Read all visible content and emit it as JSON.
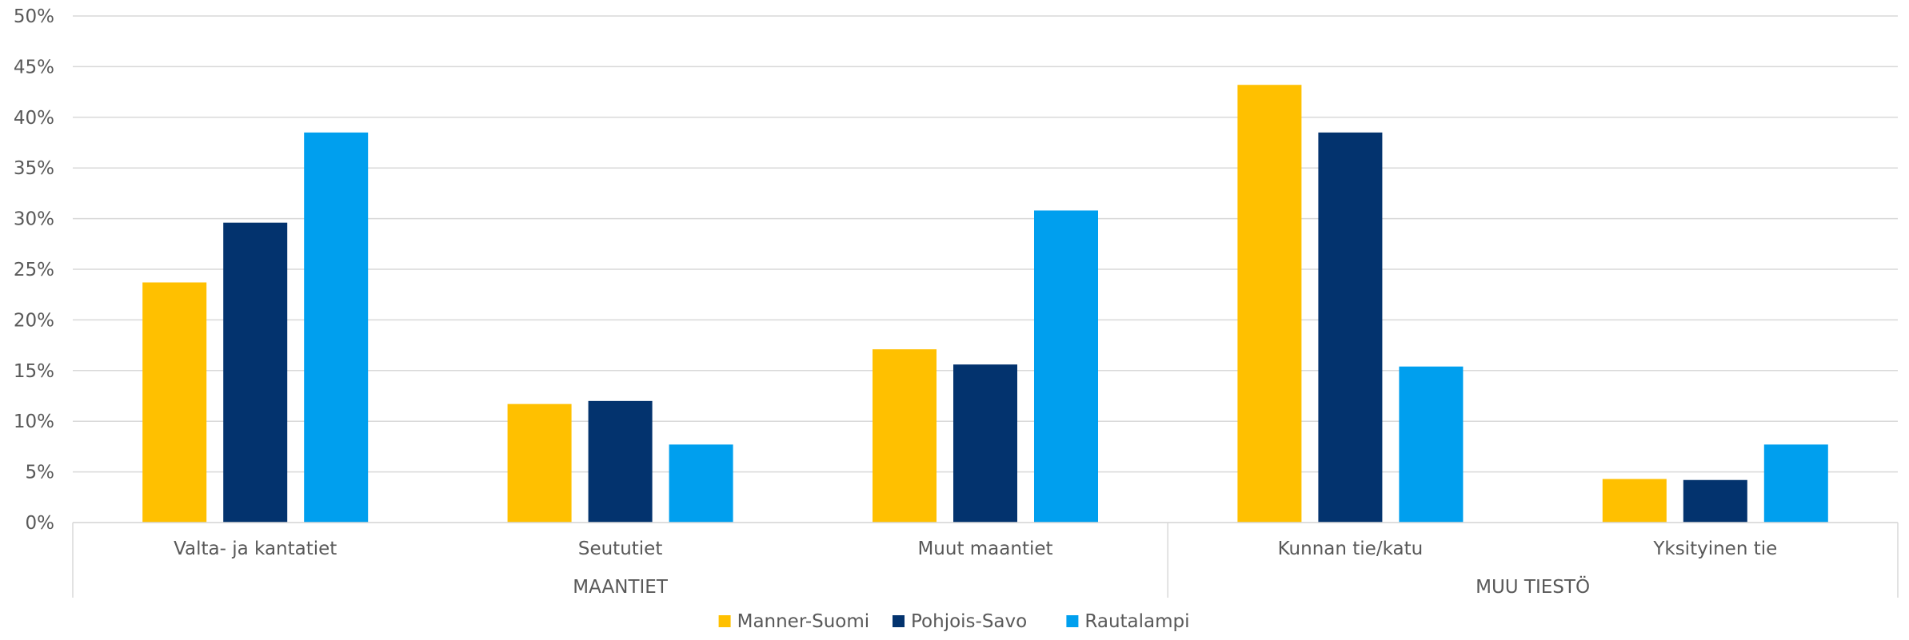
{
  "chart_data": {
    "type": "bar",
    "title": "",
    "xlabel": "",
    "ylabel": "",
    "ylim": [
      0,
      0.5
    ],
    "yticks": [
      0,
      0.05,
      0.1,
      0.15,
      0.2,
      0.25,
      0.3,
      0.35,
      0.4,
      0.45,
      0.5
    ],
    "ytick_labels": [
      "0%",
      "5%",
      "10%",
      "15%",
      "20%",
      "25%",
      "30%",
      "35%",
      "40%",
      "45%",
      "50%"
    ],
    "grid": true,
    "legend_position": "bottom",
    "categories": [
      "Valta- ja kantatiet",
      "Seututiet",
      "Muut maantiet",
      "Kunnan tie/katu",
      "Yksityinen tie"
    ],
    "groups": [
      {
        "label": "MAANTIET",
        "categories": [
          "Valta- ja kantatiet",
          "Seututiet",
          "Muut maantiet"
        ]
      },
      {
        "label": "MUU TIESTÖ",
        "categories": [
          "Kunnan tie/katu",
          "Yksityinen tie"
        ]
      }
    ],
    "series": [
      {
        "name": "Manner-Suomi",
        "color": "#FFC000",
        "values": [
          0.237,
          0.117,
          0.171,
          0.432,
          0.043
        ]
      },
      {
        "name": "Pohjois-Savo",
        "color": "#03336E",
        "values": [
          0.296,
          0.12,
          0.156,
          0.385,
          0.042
        ]
      },
      {
        "name": "Rautalampi",
        "color": "#009FEE",
        "values": [
          0.385,
          0.077,
          0.308,
          0.154,
          0.077
        ]
      }
    ]
  }
}
